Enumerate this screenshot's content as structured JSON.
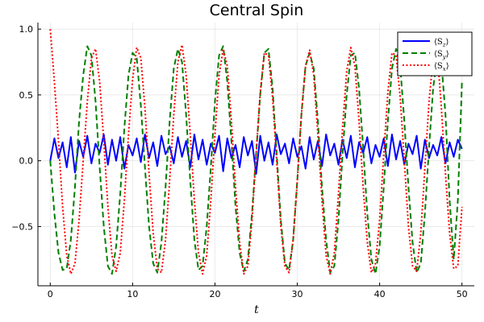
{
  "chart_data": {
    "type": "line",
    "title": "Central Spin",
    "xlabel": "t",
    "ylabel": "",
    "xlim": [
      -1.5,
      51.5
    ],
    "ylim": [
      -0.95,
      1.05
    ],
    "xticks": [
      0,
      10,
      20,
      30,
      40,
      50
    ],
    "xtick_labels": [
      "0",
      "10",
      "20",
      "30",
      "40",
      "50"
    ],
    "yticks": [
      -0.5,
      0.0,
      0.5,
      1.0
    ],
    "ytick_labels": [
      "−0.5",
      "0.0",
      "0.5",
      "1.0"
    ],
    "grid": true,
    "legend_position": "top-right",
    "series": [
      {
        "name": "⟨Sz⟩",
        "legend_main": "⟨S",
        "legend_sub": "z",
        "legend_close": "⟩",
        "color": "#0000ff",
        "style": "solid",
        "x": [
          0,
          0.5,
          1,
          1.5,
          2,
          2.5,
          3,
          3.5,
          4,
          4.5,
          5,
          5.5,
          6,
          6.5,
          7,
          7.5,
          8,
          8.5,
          9,
          9.5,
          10,
          10.5,
          11,
          11.5,
          12,
          12.5,
          13,
          13.5,
          14,
          14.5,
          15,
          15.5,
          16,
          16.5,
          17,
          17.5,
          18,
          18.5,
          19,
          19.5,
          20,
          20.5,
          21,
          21.5,
          22,
          22.5,
          23,
          23.5,
          24,
          24.5,
          25,
          25.5,
          26,
          26.5,
          27,
          27.5,
          28,
          28.5,
          29,
          29.5,
          30,
          30.5,
          31,
          31.5,
          32,
          32.5,
          33,
          33.5,
          34,
          34.5,
          35,
          35.5,
          36,
          36.5,
          37,
          37.5,
          38,
          38.5,
          39,
          39.5,
          40,
          40.5,
          41,
          41.5,
          42,
          42.5,
          43,
          43.5,
          44,
          44.5,
          45,
          45.5,
          46,
          46.5,
          47,
          47.5,
          48,
          48.5,
          49,
          49.5,
          50
        ],
        "y": [
          0.0,
          0.17,
          0.02,
          0.14,
          -0.05,
          0.18,
          -0.09,
          0.15,
          0.03,
          0.19,
          -0.02,
          0.13,
          0.06,
          0.2,
          -0.03,
          0.16,
          0.0,
          0.18,
          -0.06,
          0.12,
          0.04,
          0.17,
          -0.01,
          0.2,
          0.02,
          0.14,
          -0.04,
          0.19,
          0.05,
          0.11,
          -0.02,
          0.18,
          0.03,
          0.15,
          -0.05,
          0.2,
          0.01,
          0.16,
          -0.03,
          0.13,
          0.06,
          0.19,
          -0.08,
          0.17,
          0.02,
          0.12,
          -0.05,
          0.18,
          0.04,
          0.15,
          -0.1,
          0.19,
          0.0,
          0.14,
          -0.03,
          0.2,
          0.05,
          0.13,
          -0.02,
          0.17,
          0.03,
          0.11,
          -0.06,
          0.18,
          0.01,
          0.15,
          -0.04,
          0.2,
          0.04,
          0.13,
          -0.03,
          0.16,
          0.02,
          0.19,
          -0.05,
          0.14,
          0.06,
          0.18,
          -0.02,
          0.12,
          0.03,
          0.17,
          -0.04,
          0.2,
          0.01,
          0.15,
          -0.03,
          0.13,
          0.05,
          0.19,
          -0.06,
          0.16,
          0.02,
          0.12,
          0.04,
          0.18,
          -0.02,
          0.14,
          0.03,
          0.16,
          0.09
        ]
      },
      {
        "name": "⟨Sy⟩",
        "legend_main": "⟨S",
        "legend_sub": "y",
        "legend_close": "⟩",
        "color": "#008000",
        "style": "dashed",
        "x": [
          0,
          0.5,
          1,
          1.5,
          2,
          2.5,
          3,
          3.5,
          4,
          4.5,
          5,
          5.5,
          6,
          6.5,
          7,
          7.5,
          8,
          8.5,
          9,
          9.5,
          10,
          10.5,
          11,
          11.5,
          12,
          12.5,
          13,
          13.5,
          14,
          14.5,
          15,
          15.5,
          16,
          16.5,
          17,
          17.5,
          18,
          18.5,
          19,
          19.5,
          20,
          20.5,
          21,
          21.5,
          22,
          22.5,
          23,
          23.5,
          24,
          24.5,
          25,
          25.5,
          26,
          26.5,
          27,
          27.5,
          28,
          28.5,
          29,
          29.5,
          30,
          30.5,
          31,
          31.5,
          32,
          32.5,
          33,
          33.5,
          34,
          34.5,
          35,
          35.5,
          36,
          36.5,
          37,
          37.5,
          38,
          38.5,
          39,
          39.5,
          40,
          40.5,
          41,
          41.5,
          42,
          42.5,
          43,
          43.5,
          44,
          44.5,
          45,
          45.5,
          46,
          46.5,
          47,
          47.5,
          48,
          48.5,
          49,
          49.5,
          50
        ],
        "y": [
          0.0,
          -0.4,
          -0.7,
          -0.83,
          -0.82,
          -0.6,
          -0.2,
          0.3,
          0.65,
          0.87,
          0.8,
          0.45,
          -0.05,
          -0.5,
          -0.8,
          -0.86,
          -0.65,
          -0.25,
          0.25,
          0.65,
          0.82,
          0.78,
          0.42,
          -0.05,
          -0.5,
          -0.78,
          -0.85,
          -0.62,
          -0.2,
          0.3,
          0.7,
          0.85,
          0.75,
          0.35,
          -0.15,
          -0.6,
          -0.83,
          -0.8,
          -0.5,
          -0.05,
          0.45,
          0.8,
          0.87,
          0.6,
          0.15,
          -0.35,
          -0.7,
          -0.84,
          -0.75,
          -0.4,
          0.05,
          0.5,
          0.82,
          0.85,
          0.55,
          0.05,
          -0.45,
          -0.78,
          -0.83,
          -0.6,
          -0.15,
          0.35,
          0.72,
          0.82,
          0.7,
          0.3,
          -0.2,
          -0.6,
          -0.85,
          -0.8,
          -0.45,
          0.05,
          0.5,
          0.8,
          0.82,
          0.55,
          0.1,
          -0.4,
          -0.75,
          -0.86,
          -0.65,
          -0.2,
          0.3,
          0.7,
          0.85,
          0.72,
          0.3,
          -0.2,
          -0.62,
          -0.85,
          -0.78,
          -0.4,
          0.1,
          0.55,
          0.8,
          0.75,
          0.35,
          -0.3,
          -0.75,
          -0.3,
          0.6
        ]
      },
      {
        "name": "⟨Sx⟩",
        "legend_main": "⟨S",
        "legend_sub": "x",
        "legend_close": "⟩",
        "color": "#ff0000",
        "style": "dotted",
        "x": [
          0,
          0.5,
          1,
          1.5,
          2,
          2.5,
          3,
          3.5,
          4,
          4.5,
          5,
          5.5,
          6,
          6.5,
          7,
          7.5,
          8,
          8.5,
          9,
          9.5,
          10,
          10.5,
          11,
          11.5,
          12,
          12.5,
          13,
          13.5,
          14,
          14.5,
          15,
          15.5,
          16,
          16.5,
          17,
          17.5,
          18,
          18.5,
          19,
          19.5,
          20,
          20.5,
          21,
          21.5,
          22,
          22.5,
          23,
          23.5,
          24,
          24.5,
          25,
          25.5,
          26,
          26.5,
          27,
          27.5,
          28,
          28.5,
          29,
          29.5,
          30,
          30.5,
          31,
          31.5,
          32,
          32.5,
          33,
          33.5,
          34,
          34.5,
          35,
          35.5,
          36,
          36.5,
          37,
          37.5,
          38,
          38.5,
          39,
          39.5,
          40,
          40.5,
          41,
          41.5,
          42,
          42.5,
          43,
          43.5,
          44,
          44.5,
          45,
          45.5,
          46,
          46.5,
          47,
          47.5,
          48,
          48.5,
          49,
          49.5,
          50
        ],
        "y": [
          1.0,
          0.6,
          0.15,
          -0.35,
          -0.72,
          -0.86,
          -0.78,
          -0.45,
          0.0,
          0.45,
          0.78,
          0.85,
          0.6,
          0.15,
          -0.35,
          -0.72,
          -0.84,
          -0.7,
          -0.3,
          0.2,
          0.62,
          0.86,
          0.78,
          0.4,
          -0.1,
          -0.55,
          -0.82,
          -0.85,
          -0.6,
          -0.15,
          0.35,
          0.75,
          0.88,
          0.65,
          0.2,
          -0.3,
          -0.7,
          -0.86,
          -0.72,
          -0.3,
          0.2,
          0.65,
          0.85,
          0.72,
          0.3,
          -0.2,
          -0.62,
          -0.86,
          -0.8,
          -0.45,
          0.05,
          0.52,
          0.82,
          0.8,
          0.48,
          0.0,
          -0.5,
          -0.8,
          -0.85,
          -0.6,
          -0.15,
          0.35,
          0.72,
          0.84,
          0.65,
          0.2,
          -0.3,
          -0.72,
          -0.86,
          -0.7,
          -0.25,
          0.25,
          0.68,
          0.86,
          0.72,
          0.3,
          -0.2,
          -0.62,
          -0.85,
          -0.78,
          -0.45,
          0.05,
          0.52,
          0.82,
          0.8,
          0.48,
          0.0,
          -0.5,
          -0.8,
          -0.84,
          -0.55,
          -0.05,
          0.45,
          0.78,
          0.83,
          0.4,
          -0.1,
          -0.55,
          -0.82,
          -0.8,
          -0.35
        ]
      }
    ]
  }
}
